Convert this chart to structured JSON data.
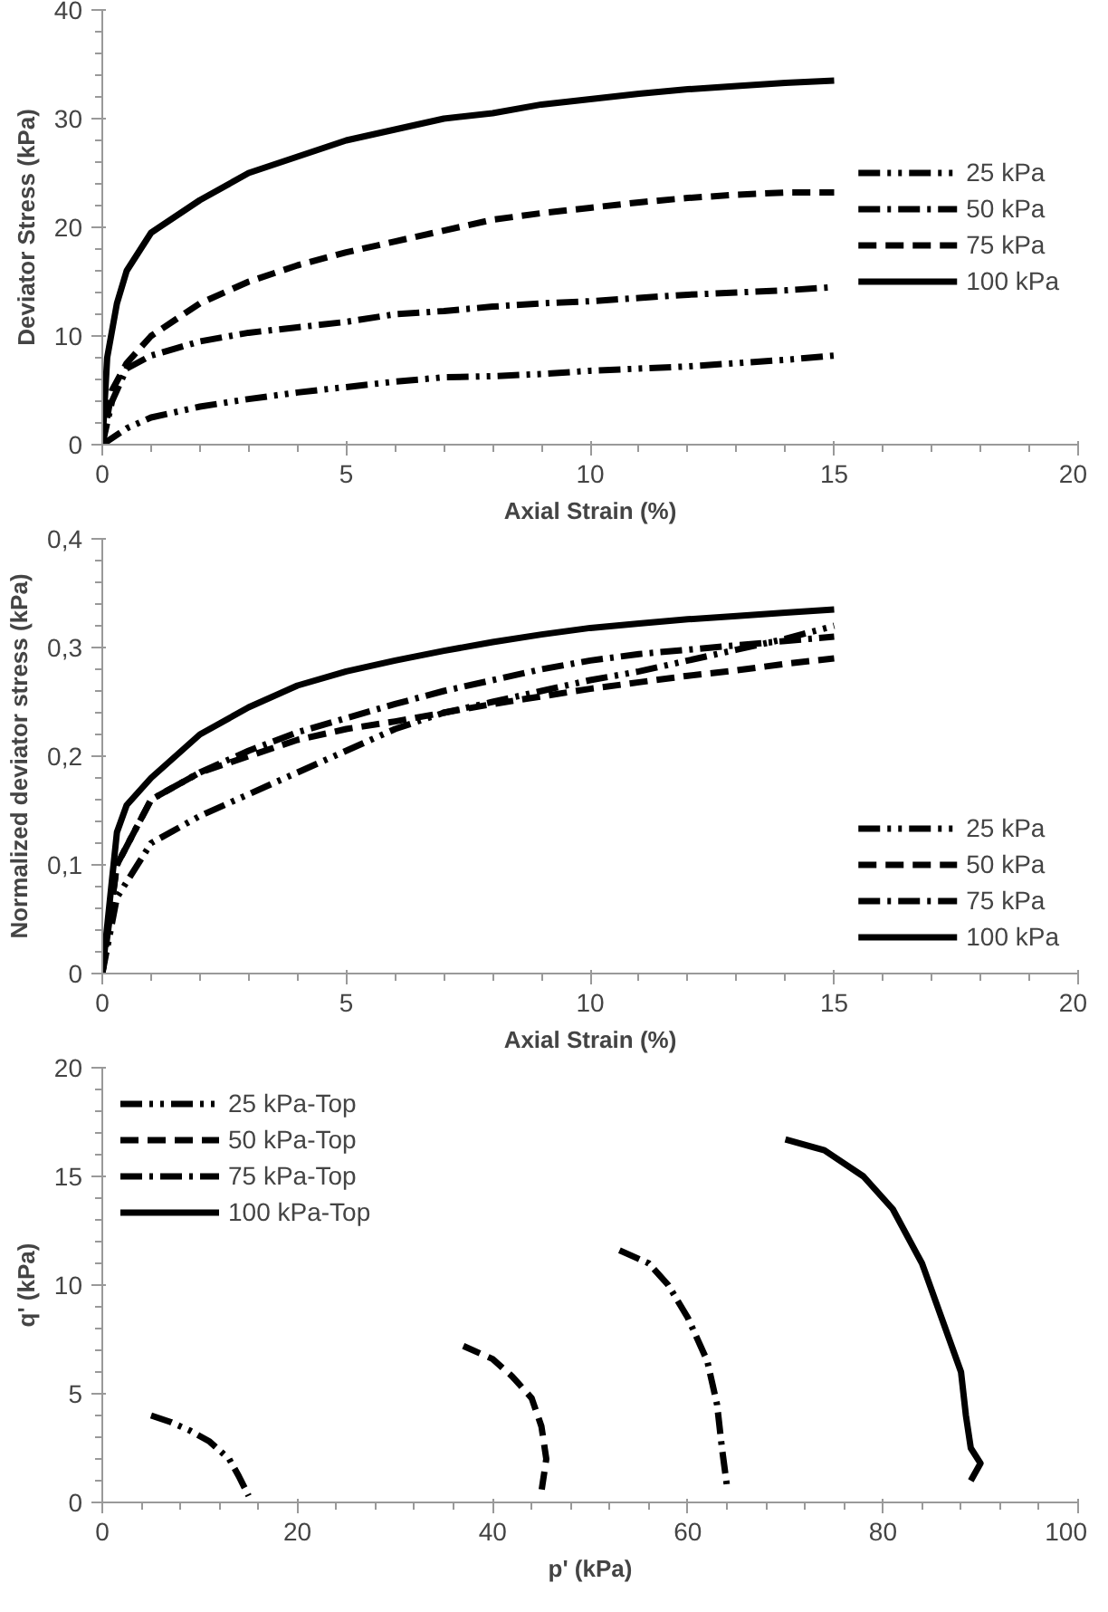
{
  "chart_data": [
    {
      "type": "line",
      "xlabel": "Axial Strain (%)",
      "ylabel": "Deviator Stress (kPa)",
      "xlim": [
        0,
        20
      ],
      "xticks": [
        0,
        5,
        10,
        15,
        20
      ],
      "ylim": [
        0,
        40
      ],
      "yticks": [
        0,
        10,
        20,
        30,
        40
      ],
      "grid": false,
      "legend": "right",
      "series": [
        {
          "name": "25 kPa",
          "color": "#000000",
          "line_style": "dotted",
          "x": [
            0,
            0.5,
            1,
            2,
            3,
            4,
            5,
            6,
            7,
            8,
            9,
            10,
            11,
            12,
            13,
            14,
            15
          ],
          "values": [
            0,
            1.5,
            2.5,
            3.5,
            4.2,
            4.8,
            5.3,
            5.8,
            6.2,
            6.3,
            6.5,
            6.8,
            7,
            7.2,
            7.5,
            7.8,
            8.2
          ]
        },
        {
          "name": "50 kPa",
          "color": "#000000",
          "line_style": "dashdot",
          "x": [
            0,
            0.2,
            0.5,
            1,
            2,
            3,
            4,
            5,
            6,
            7,
            8,
            9,
            10,
            11,
            12,
            13,
            14,
            15
          ],
          "values": [
            0,
            4,
            7,
            8.2,
            9.5,
            10.3,
            10.8,
            11.3,
            12,
            12.3,
            12.7,
            13,
            13.2,
            13.5,
            13.8,
            14,
            14.2,
            14.5
          ]
        },
        {
          "name": "75 kPa",
          "color": "#000000",
          "line_style": "dashed",
          "x": [
            0,
            0.2,
            0.5,
            1,
            2,
            3,
            4,
            5,
            6,
            7,
            8,
            9,
            10,
            11,
            12,
            13,
            14,
            15
          ],
          "values": [
            0,
            5,
            7.5,
            10,
            13,
            15,
            16.5,
            17.7,
            18.7,
            19.7,
            20.7,
            21.3,
            21.8,
            22.3,
            22.7,
            23,
            23.2,
            23.2
          ]
        },
        {
          "name": "100 kPa",
          "color": "#000000",
          "line_style": "solid",
          "x": [
            0,
            0.1,
            0.3,
            0.5,
            1,
            2,
            3,
            4,
            5,
            6,
            7,
            8,
            9,
            10,
            11,
            12,
            13,
            14,
            15
          ],
          "values": [
            0,
            8,
            13,
            16,
            19.5,
            22.5,
            25,
            26.5,
            28,
            29,
            30,
            30.5,
            31.3,
            31.8,
            32.3,
            32.7,
            33,
            33.3,
            33.5
          ]
        }
      ]
    },
    {
      "type": "line",
      "xlabel": "Axial Strain (%)",
      "ylabel": "Normalized deviator stress (kPa)",
      "xlim": [
        0,
        20
      ],
      "xticks": [
        0,
        5,
        10,
        15,
        20
      ],
      "ylim": [
        0,
        0.4
      ],
      "yticks": [
        {
          "value": 0,
          "label": "0"
        },
        {
          "value": 0.1,
          "label": "0,1"
        },
        {
          "value": 0.2,
          "label": "0,2"
        },
        {
          "value": 0.3,
          "label": "0,3"
        },
        {
          "value": 0.4,
          "label": "0,4"
        }
      ],
      "grid": false,
      "legend": "bottom right",
      "series": [
        {
          "name": "25 kPa",
          "color": "#000000",
          "line_style": "dotted",
          "x": [
            0,
            0.3,
            1,
            2,
            3,
            4,
            5,
            6,
            7,
            8,
            9,
            10,
            11,
            12,
            13,
            14,
            15
          ],
          "values": [
            0,
            0.07,
            0.12,
            0.145,
            0.165,
            0.185,
            0.205,
            0.225,
            0.24,
            0.25,
            0.26,
            0.27,
            0.278,
            0.288,
            0.298,
            0.308,
            0.32
          ]
        },
        {
          "name": "50 kPa",
          "color": "#000000",
          "line_style": "dashed",
          "x": [
            0,
            0.3,
            1,
            2,
            3,
            4,
            5,
            6,
            7,
            8,
            9,
            10,
            11,
            12,
            13,
            14,
            15
          ],
          "values": [
            0,
            0.1,
            0.16,
            0.185,
            0.2,
            0.215,
            0.225,
            0.232,
            0.24,
            0.248,
            0.255,
            0.262,
            0.268,
            0.274,
            0.279,
            0.285,
            0.29
          ]
        },
        {
          "name": "75 kPa",
          "color": "#000000",
          "line_style": "dashdot",
          "x": [
            0,
            0.3,
            1,
            2,
            3,
            4,
            5,
            6,
            7,
            8,
            9,
            10,
            11,
            12,
            13,
            14,
            15
          ],
          "values": [
            0,
            0.1,
            0.16,
            0.185,
            0.205,
            0.222,
            0.235,
            0.248,
            0.26,
            0.27,
            0.28,
            0.288,
            0.294,
            0.298,
            0.302,
            0.306,
            0.31
          ]
        },
        {
          "name": "100 kPa",
          "color": "#000000",
          "line_style": "solid",
          "x": [
            0,
            0.3,
            0.5,
            1,
            2,
            3,
            4,
            5,
            6,
            7,
            8,
            9,
            10,
            11,
            12,
            13,
            14,
            15
          ],
          "values": [
            0,
            0.13,
            0.155,
            0.18,
            0.22,
            0.245,
            0.265,
            0.278,
            0.288,
            0.297,
            0.305,
            0.312,
            0.318,
            0.322,
            0.326,
            0.329,
            0.332,
            0.335
          ]
        }
      ]
    },
    {
      "type": "line",
      "xlabel": "p' (kPa)",
      "ylabel": "q' (kPa)",
      "xlim": [
        0,
        100
      ],
      "xticks": [
        0,
        20,
        40,
        60,
        80,
        100
      ],
      "ylim": [
        0,
        20
      ],
      "yticks": [
        0,
        5,
        10,
        15,
        20
      ],
      "grid": false,
      "legend": "top left",
      "series": [
        {
          "name": "25 kPa-Top",
          "color": "#000000",
          "line_style": "dotted",
          "x": [
            5,
            7,
            9,
            11,
            13,
            14,
            15
          ],
          "values": [
            4,
            3.7,
            3.3,
            2.8,
            2,
            1.2,
            0.3
          ]
        },
        {
          "name": "50 kPa-Top",
          "color": "#000000",
          "line_style": "dashed",
          "x": [
            37,
            40,
            42,
            44,
            45,
            45.5,
            45
          ],
          "values": [
            7.2,
            6.6,
            5.8,
            4.8,
            3.5,
            2,
            0.5
          ]
        },
        {
          "name": "75 kPa-Top",
          "color": "#000000",
          "line_style": "dashdot",
          "x": [
            53,
            56,
            58,
            60,
            62,
            63,
            63.5,
            64
          ],
          "values": [
            11.6,
            11,
            10,
            8.5,
            6.5,
            4.5,
            2.5,
            0.8
          ]
        },
        {
          "name": "100 kPa-Top",
          "color": "#000000",
          "line_style": "solid",
          "x": [
            70,
            74,
            78,
            81,
            84,
            86,
            88,
            88.5,
            89,
            90,
            89
          ],
          "values": [
            16.7,
            16.2,
            15,
            13.5,
            11,
            8.5,
            6,
            4,
            2.5,
            1.8,
            1
          ]
        }
      ]
    }
  ]
}
